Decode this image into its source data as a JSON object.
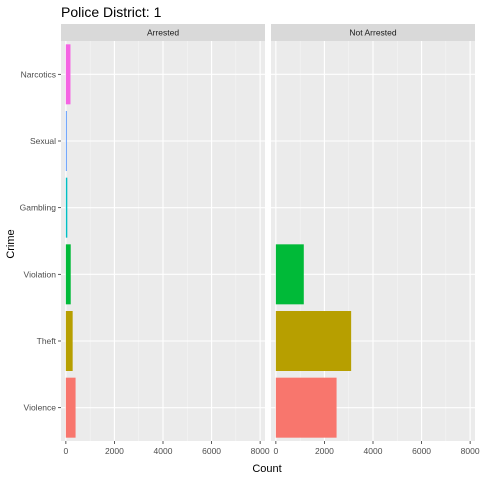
{
  "chart_data": {
    "type": "bar",
    "orientation": "horizontal",
    "title": "Police District: 1",
    "xlabel": "Count",
    "ylabel": "Crime",
    "xlim": [
      -200,
      8200
    ],
    "x_ticks": [
      0,
      2000,
      4000,
      6000,
      8000
    ],
    "x_tick_labels": [
      "0",
      "2000",
      "4000",
      "6000",
      "8000"
    ],
    "grid": true,
    "legend": "none",
    "categories": [
      "Violence",
      "Theft",
      "Violation",
      "Gambling",
      "Sexual",
      "Narcotics"
    ],
    "category_colors": {
      "Violence": "#F8766D",
      "Theft": "#B79F00",
      "Violation": "#00BA38",
      "Gambling": "#00BFC4",
      "Sexual": "#619CFF",
      "Narcotics": "#F564E3"
    },
    "facets": [
      {
        "label": "Arrested",
        "values": {
          "Violence": 400,
          "Theft": 280,
          "Violation": 200,
          "Gambling": 60,
          "Sexual": 40,
          "Narcotics": 190
        }
      },
      {
        "label": "Not Arrested",
        "values": {
          "Violence": 2500,
          "Theft": 3100,
          "Violation": 1150,
          "Gambling": 0,
          "Sexual": 0,
          "Narcotics": 0
        }
      }
    ]
  }
}
